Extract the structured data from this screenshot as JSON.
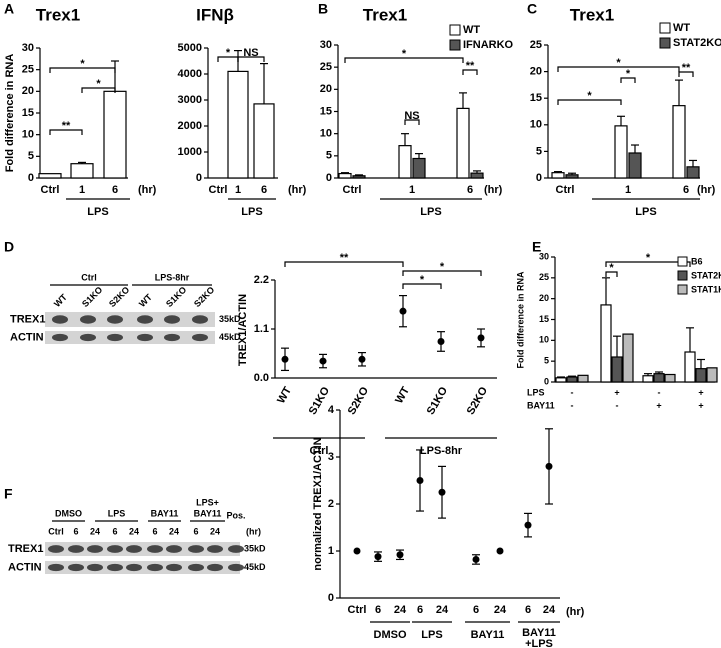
{
  "chart_data": [
    {
      "type": "bar",
      "panel": "A",
      "title": "Trex1",
      "ylabel": "Fold difference in RNA",
      "categories": [
        "Ctrl",
        "1",
        "6"
      ],
      "values": [
        1,
        3.3,
        20
      ],
      "errors": [
        0,
        0.3,
        7
      ],
      "color": "#ffffff",
      "ylim": [
        0,
        30
      ],
      "yticks": [
        0,
        5,
        10,
        15,
        20,
        25,
        30
      ],
      "x_unit": "(hr)",
      "groups": [
        "LPS"
      ],
      "annotations": [
        "**",
        "*",
        "*"
      ]
    },
    {
      "type": "bar",
      "title": "IFNβ",
      "categories": [
        "Ctrl",
        "1",
        "6"
      ],
      "values": [
        0,
        4100,
        2850
      ],
      "errors": [
        0,
        800,
        1550
      ],
      "color": "#ffffff",
      "ylim": [
        0,
        5000
      ],
      "yticks": [
        0,
        1000,
        2000,
        3000,
        4000,
        5000
      ],
      "x_unit": "(hr)",
      "groups": [
        "LPS"
      ],
      "annotations": [
        "*",
        "NS"
      ]
    },
    {
      "type": "bar",
      "panel": "B",
      "title": "Trex1",
      "categories": [
        "Ctrl",
        "1",
        "6"
      ],
      "series": [
        {
          "name": "WT",
          "color": "#ffffff",
          "values": [
            1,
            7.3,
            15.7
          ],
          "errors": [
            0.2,
            2.7,
            3.5
          ]
        },
        {
          "name": "IFNARKO",
          "color": "#555555",
          "values": [
            0.5,
            4.4,
            1.1
          ],
          "errors": [
            0.2,
            1.1,
            0.5
          ]
        }
      ],
      "ylim": [
        0,
        30
      ],
      "yticks": [
        0,
        5,
        10,
        15,
        20,
        25,
        30
      ],
      "x_unit": "(hr)",
      "groups": [
        "LPS"
      ],
      "annotations": [
        "NS",
        "**",
        "*"
      ]
    },
    {
      "type": "bar",
      "panel": "C",
      "title": "Trex1",
      "categories": [
        "Ctrl",
        "1",
        "6"
      ],
      "series": [
        {
          "name": "WT",
          "color": "#ffffff",
          "values": [
            1,
            9.8,
            13.6
          ],
          "errors": [
            0.2,
            1.8,
            4.8
          ]
        },
        {
          "name": "STAT2KO",
          "color": "#555555",
          "values": [
            0.6,
            4.7,
            2.1
          ],
          "errors": [
            0.3,
            1.5,
            1.2
          ]
        }
      ],
      "ylim": [
        0,
        25
      ],
      "yticks": [
        0,
        5,
        10,
        15,
        20,
        25
      ],
      "x_unit": "(hr)",
      "groups": [
        "LPS"
      ],
      "annotations": [
        "*",
        "*",
        "**",
        "*"
      ]
    },
    {
      "type": "dot",
      "panel": "D",
      "ylabel": "TREX1/ACTIN",
      "categories": [
        "WT",
        "S1KO",
        "S2KO",
        "WT",
        "S1KO",
        "S2KO"
      ],
      "values": [
        0.42,
        0.38,
        0.42,
        1.5,
        0.82,
        0.9
      ],
      "errors": [
        0.25,
        0.15,
        0.15,
        0.35,
        0.22,
        0.2
      ],
      "ylim": [
        0,
        2.2
      ],
      "yticks": [
        {
          "value": 0,
          "label": "0.0"
        },
        1.1,
        2.2
      ],
      "groups": [
        "Ctrl",
        "LPS-8hr"
      ],
      "annotations": [
        "**",
        "*",
        "*"
      ]
    },
    {
      "type": "bar",
      "panel": "E",
      "ylabel": "Fold difference in RNA",
      "row_labels": [
        "LPS",
        "BAY11"
      ],
      "rows": [
        [
          "-",
          "+",
          "-",
          "+"
        ],
        [
          "-",
          "-",
          "+",
          "+"
        ]
      ],
      "series": [
        {
          "name": "B6",
          "color": "#ffffff",
          "values": [
            1,
            18.5,
            1.5,
            7.2
          ],
          "errors": [
            0.2,
            6.5,
            0.5,
            5.8
          ]
        },
        {
          "name": "STAT2KO",
          "color": "#555555",
          "values": [
            1.2,
            6,
            2,
            3.2
          ],
          "errors": [
            0.2,
            5,
            0.4,
            2.2
          ]
        },
        {
          "name": "STAT1KO",
          "color": "#bbbbbb",
          "values": [
            1.6,
            11.5,
            1.8,
            3.4
          ]
        }
      ],
      "ylim": [
        0,
        30
      ],
      "yticks": [
        0,
        5,
        10,
        15,
        20,
        25,
        30
      ],
      "annotations": [
        "*",
        "*"
      ]
    },
    {
      "type": "dot",
      "panel": "F",
      "ylabel": "normalized TREX1/ACTIN",
      "categories": [
        "Ctrl",
        "6",
        "24",
        "6",
        "24",
        "6",
        "24",
        "6",
        "24"
      ],
      "values": [
        1,
        0.88,
        0.92,
        2.5,
        2.25,
        0.82,
        1.0,
        1.55,
        2.8
      ],
      "errors": [
        0,
        0.1,
        0.1,
        0.65,
        0.55,
        0.1,
        0,
        0.25,
        0.8
      ],
      "ylim": [
        0,
        4
      ],
      "yticks": [
        0,
        1,
        2,
        3,
        4
      ],
      "x_unit": "(hr)",
      "groups": [
        "DMSO",
        "LPS",
        "BAY11",
        [
          "BAY11",
          "+LPS"
        ]
      ]
    }
  ],
  "blots": [
    {
      "groups": [
        "Ctrl",
        "LPS-8hr"
      ],
      "lanes": [
        "WT",
        "S1KO",
        "S2KO",
        "WT",
        "S1KO",
        "S2KO"
      ],
      "rows": [
        "TREX1",
        "ACTIN"
      ],
      "sizes": [
        "35kD",
        "45kD"
      ]
    },
    {
      "groups": [
        "DMSO",
        "LPS",
        "BAY11",
        [
          "LPS+",
          "BAY11"
        ]
      ],
      "lanes": [
        "Ctrl",
        "6",
        "24",
        "6",
        "24",
        "6",
        "24",
        "6",
        "24",
        "Pos."
      ],
      "unit": "(hr)",
      "rows": [
        "TREX1",
        "ACTIN"
      ],
      "sizes": [
        "35kD",
        "45kD"
      ]
    }
  ]
}
